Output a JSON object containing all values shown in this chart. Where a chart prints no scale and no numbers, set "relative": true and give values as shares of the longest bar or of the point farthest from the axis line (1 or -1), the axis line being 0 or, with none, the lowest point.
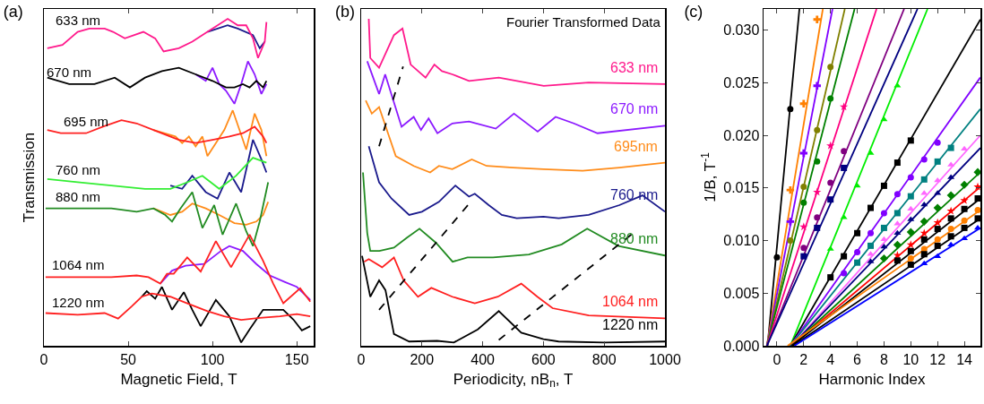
{
  "chart_data": [
    {
      "type": "line",
      "title": "(a)",
      "xlabel": "Magnetic Field, T",
      "ylabel": "Transmission",
      "relative": true,
      "tick_labels": "x",
      "xlim": [
        0,
        160
      ],
      "xticks": [
        0,
        50,
        100,
        150
      ],
      "annotations": [
        {
          "text": "633 nm",
          "x": 20,
          "y": 0.96
        },
        {
          "text": "670 nm",
          "x": 15,
          "y": 0.8
        },
        {
          "text": "695 nm",
          "x": 25,
          "y": 0.65
        },
        {
          "text": "760 nm",
          "x": 20,
          "y": 0.5
        },
        {
          "text": "880 nm",
          "x": 20,
          "y": 0.42
        },
        {
          "text": "1064 nm",
          "x": 20,
          "y": 0.21
        },
        {
          "text": "1220 nm",
          "x": 20,
          "y": 0.095
        }
      ],
      "series": [
        {
          "color": "#1a1a8c",
          "x": [
            97,
            109,
            115,
            124,
            128,
            131
          ],
          "values": [
            0.96,
            0.98,
            0.97,
            0.95,
            0.91,
            0.93
          ]
        },
        {
          "color": "#ff1a8c",
          "x": [
            2,
            11,
            20,
            27,
            36,
            41,
            48,
            59,
            66,
            71,
            80,
            88,
            97,
            109,
            115,
            120,
            124,
            127,
            131,
            132
          ],
          "values": [
            0.91,
            0.92,
            0.96,
            0.97,
            0.97,
            0.96,
            0.94,
            0.96,
            0.94,
            0.9,
            0.91,
            0.93,
            0.96,
            1.0,
            0.98,
            0.98,
            0.94,
            0.88,
            0.93,
            0.99
          ]
        },
        {
          "color": "#8c1aff",
          "x": [
            90,
            96,
            100,
            104,
            108,
            113,
            117,
            121,
            125,
            129,
            132
          ],
          "values": [
            0.83,
            0.81,
            0.85,
            0.8,
            0.78,
            0.74,
            0.8,
            0.87,
            0.83,
            0.77,
            0.8
          ]
        },
        {
          "color": "#000000",
          "x": [
            2,
            15,
            30,
            42,
            51,
            60,
            70,
            80,
            90,
            100,
            108,
            113,
            118,
            122,
            126,
            130,
            132
          ],
          "values": [
            0.82,
            0.8,
            0.8,
            0.82,
            0.79,
            0.82,
            0.84,
            0.85,
            0.83,
            0.81,
            0.79,
            0.79,
            0.8,
            0.79,
            0.81,
            0.79,
            0.81
          ]
        },
        {
          "color": "#ff8c1a",
          "x": [
            65,
            78,
            82,
            86,
            90,
            94,
            97,
            102,
            107,
            112,
            116,
            120,
            125,
            129,
            132
          ],
          "values": [
            0.66,
            0.64,
            0.62,
            0.64,
            0.61,
            0.64,
            0.58,
            0.62,
            0.66,
            0.72,
            0.66,
            0.6,
            0.71,
            0.66,
            0.58
          ]
        },
        {
          "color": "#ff2020",
          "x": [
            2,
            10,
            25,
            35,
            46,
            55,
            65,
            80,
            90,
            100,
            110,
            118,
            125,
            130,
            132
          ],
          "values": [
            0.66,
            0.65,
            0.65,
            0.67,
            0.69,
            0.68,
            0.66,
            0.63,
            0.62,
            0.63,
            0.64,
            0.65,
            0.67,
            0.64,
            0.62
          ]
        },
        {
          "color": "#1a1a8c",
          "x": [
            75,
            82,
            88,
            96,
            103,
            110,
            117,
            124,
            129,
            132
          ],
          "values": [
            0.49,
            0.48,
            0.52,
            0.47,
            0.45,
            0.53,
            0.47,
            0.63,
            0.57,
            0.53
          ]
        },
        {
          "color": "#33ee33",
          "x": [
            2,
            20,
            40,
            60,
            75,
            85,
            94,
            104,
            114,
            124,
            132
          ],
          "values": [
            0.51,
            0.5,
            0.49,
            0.48,
            0.48,
            0.5,
            0.52,
            0.48,
            0.52,
            0.575,
            0.56
          ]
        },
        {
          "color": "#ff8c1a",
          "x": [
            65,
            75,
            82,
            88,
            96,
            104,
            113,
            120,
            126,
            130,
            133
          ],
          "values": [
            0.42,
            0.4,
            0.41,
            0.435,
            0.42,
            0.4,
            0.375,
            0.37,
            0.38,
            0.4,
            0.44
          ]
        },
        {
          "color": "#228b22",
          "x": [
            1,
            20,
            40,
            55,
            65,
            72,
            76,
            81,
            88,
            94,
            101,
            106,
            114,
            120,
            124,
            128,
            133
          ],
          "values": [
            0.42,
            0.42,
            0.42,
            0.41,
            0.42,
            0.4,
            0.38,
            0.42,
            0.47,
            0.36,
            0.43,
            0.34,
            0.435,
            0.35,
            0.305,
            0.38,
            0.5
          ]
        },
        {
          "color": "#8c1aff",
          "x": [
            69,
            76,
            84,
            95,
            105,
            110,
            118,
            126,
            134,
            143,
            150,
            158
          ],
          "values": [
            0.19,
            0.23,
            0.245,
            0.25,
            0.29,
            0.305,
            0.29,
            0.25,
            0.215,
            0.195,
            0.18,
            0.14
          ]
        },
        {
          "color": "#ff2020",
          "x": [
            1,
            20,
            40,
            55,
            62,
            69,
            73,
            77,
            85,
            93,
            102,
            111,
            122,
            130,
            136,
            142,
            152,
            158
          ],
          "values": [
            0.21,
            0.21,
            0.21,
            0.215,
            0.21,
            0.19,
            0.22,
            0.22,
            0.27,
            0.227,
            0.32,
            0.24,
            0.34,
            0.26,
            0.19,
            0.13,
            0.176,
            0.135
          ]
        },
        {
          "color": "#000000",
          "x": [
            58,
            61,
            66,
            70,
            76,
            83,
            88,
            93,
            102,
            110,
            117,
            122,
            130,
            142,
            148,
            153,
            158
          ],
          "values": [
            0.15,
            0.167,
            0.144,
            0.18,
            0.11,
            0.164,
            0.11,
            0.06,
            0.14,
            0.09,
            0.01,
            0.05,
            0.11,
            0.11,
            0.08,
            0.047,
            0.06
          ]
        },
        {
          "color": "#ff2020",
          "x": [
            1,
            20,
            36,
            44,
            52,
            58,
            64,
            75,
            85,
            97,
            107,
            117,
            128,
            140,
            150,
            158
          ],
          "values": [
            0.1,
            0.095,
            0.1,
            0.083,
            0.12,
            0.15,
            0.16,
            0.15,
            0.13,
            0.106,
            0.09,
            0.079,
            0.085,
            0.09,
            0.097,
            0.09
          ]
        }
      ]
    },
    {
      "type": "line",
      "title": "(b)",
      "xlabel": "Periodicity, nB$_{n}$, T",
      "relative": true,
      "tick_labels": "x",
      "xlim": [
        0,
        1000
      ],
      "xticks": [
        0,
        200,
        400,
        600,
        800,
        1000
      ],
      "annotations": [
        "Fourier Transformed Data"
      ],
      "series": [
        {
          "name": "633 nm",
          "color": "#ff1a8c",
          "x": [
            25,
            30,
            59,
            108,
            136,
            163,
            212,
            241,
            266,
            300,
            355,
            453,
            601,
            749,
            1000
          ],
          "values": [
            1.0,
            0.88,
            0.85,
            0.95,
            0.97,
            0.86,
            0.82,
            0.86,
            0.84,
            0.83,
            0.81,
            0.82,
            0.795,
            0.805,
            0.8
          ]
        },
        {
          "name": "670 nm",
          "color": "#8c1aff",
          "x": [
            20,
            59,
            79,
            133,
            173,
            197,
            222,
            251,
            300,
            355,
            443,
            503,
            581,
            640,
            700,
            778,
            1000
          ],
          "values": [
            0.87,
            0.77,
            0.83,
            0.67,
            0.7,
            0.66,
            0.695,
            0.65,
            0.68,
            0.686,
            0.664,
            0.71,
            0.655,
            0.7,
            0.68,
            0.65,
            0.673
          ]
        },
        {
          "name": "695nm",
          "color": "#ff8c1a",
          "x": [
            15,
            35,
            59,
            114,
            173,
            227,
            256,
            300,
            364,
            413,
            500,
            600,
            729,
            850,
            1000
          ],
          "values": [
            0.75,
            0.71,
            0.73,
            0.58,
            0.55,
            0.53,
            0.55,
            0.54,
            0.57,
            0.55,
            0.545,
            0.54,
            0.535,
            0.545,
            0.56
          ]
        },
        {
          "name": "760 nm",
          "color": "#1a1a8c",
          "x": [
            25,
            59,
            100,
            158,
            200,
            256,
            310,
            355,
            374,
            420,
            463,
            512,
            600,
            650,
            749,
            850,
            926,
            1000
          ],
          "values": [
            0.61,
            0.5,
            0.45,
            0.4,
            0.41,
            0.44,
            0.49,
            0.456,
            0.465,
            0.43,
            0.4,
            0.39,
            0.395,
            0.39,
            0.4,
            0.43,
            0.46,
            0.41
          ]
        },
        {
          "name": "880 nm",
          "color": "#228b22",
          "x": [
            6,
            20,
            30,
            60,
            108,
            150,
            192,
            246,
            301,
            350,
            434,
            552,
            660,
            744,
            847,
            1000
          ],
          "values": [
            0.53,
            0.345,
            0.29,
            0.29,
            0.3,
            0.33,
            0.358,
            0.315,
            0.257,
            0.27,
            0.27,
            0.279,
            0.31,
            0.358,
            0.305,
            0.276
          ]
        },
        {
          "name": "1064 nm",
          "color": "#ff2020",
          "x": [
            10,
            25,
            69,
            108,
            140,
            187,
            231,
            300,
            374,
            450,
            527,
            580,
            630,
            749,
            1000
          ],
          "values": [
            0.257,
            0.265,
            0.24,
            0.27,
            0.2,
            0.15,
            0.177,
            0.15,
            0.13,
            0.15,
            0.19,
            0.15,
            0.115,
            0.093,
            0.084
          ]
        },
        {
          "name": "1220 nm",
          "color": "#000000",
          "x": [
            3,
            30,
            59,
            80,
            108,
            158,
            250,
            305,
            384,
            453,
            527,
            600,
            650,
            800,
            1000
          ],
          "values": [
            0.275,
            0.15,
            0.2,
            0.17,
            0.036,
            0.013,
            0.015,
            0.01,
            0.05,
            0.106,
            0.04,
            0.02,
            0.013,
            0.01,
            0.013
          ]
        },
        {
          "color": "#000000",
          "line_style": "dashed",
          "x": [
            59,
            138
          ],
          "values": [
            0.61,
            0.854
          ]
        },
        {
          "color": "#000000",
          "line_style": "dashed",
          "x": [
            59,
            355
          ],
          "values": [
            0.11,
            0.434
          ]
        },
        {
          "color": "#000000",
          "line_style": "dashed",
          "x": [
            453,
            896
          ],
          "values": [
            0.018,
            0.345
          ]
        }
      ]
    },
    {
      "type": "scatter",
      "title": "(c)",
      "xlabel": "Harmonic Index",
      "ylabel": "1/B, T$^{-1}$",
      "xlim": [
        -1,
        15.2
      ],
      "xticks": [
        0,
        2,
        4,
        6,
        8,
        10,
        12,
        14
      ],
      "ylim": [
        0,
        0.032
      ],
      "yticks": [
        {
          "value": 0,
          "label": "0.000"
        },
        {
          "value": 0.005,
          "label": "0.005"
        },
        {
          "value": 0.01,
          "label": "0.010"
        },
        {
          "value": 0.015,
          "label": "0.015"
        },
        {
          "value": 0.02,
          "label": "0.020"
        },
        {
          "value": 0.025,
          "label": "0.025"
        },
        {
          "value": 0.03,
          "label": "0.030"
        }
      ],
      "series": [
        {
          "type": "line",
          "marker": "none",
          "color": "#000000",
          "x": [
            -0.7,
            1.68
          ],
          "values": [
            0,
            0.032
          ]
        },
        {
          "type": "line",
          "marker": "none",
          "color": "#ff8000",
          "x": [
            -0.75,
            3.43
          ],
          "values": [
            0,
            0.032
          ]
        },
        {
          "type": "line",
          "marker": "none",
          "color": "#8000ff",
          "x": [
            -0.75,
            4.15
          ],
          "values": [
            0,
            0.032
          ]
        },
        {
          "type": "line",
          "marker": "none",
          "color": "#808000",
          "x": [
            -0.75,
            5.07
          ],
          "values": [
            0,
            0.032
          ]
        },
        {
          "type": "line",
          "marker": "none",
          "color": "#008000",
          "x": [
            -0.75,
            5.8
          ],
          "values": [
            0,
            0.032
          ]
        },
        {
          "type": "line",
          "marker": "none",
          "color": "#ff0080",
          "x": [
            -0.75,
            7.44
          ],
          "values": [
            0,
            0.032
          ]
        },
        {
          "type": "line",
          "marker": "none",
          "color": "#800080",
          "x": [
            -0.75,
            9.5
          ],
          "values": [
            0,
            0.032
          ]
        },
        {
          "type": "line",
          "marker": "none",
          "color": "#000080",
          "x": [
            -0.75,
            10.5
          ],
          "values": [
            0,
            0.032
          ]
        },
        {
          "type": "line",
          "marker": "none",
          "color": "#00ee00",
          "x": [
            1,
            11.25
          ],
          "values": [
            0,
            0.032
          ]
        },
        {
          "type": "line",
          "marker": "none",
          "color": "#000000",
          "x": [
            1,
            15.2
          ],
          "values": [
            0,
            0.031
          ]
        },
        {
          "type": "line",
          "marker": "none",
          "color": "#8000ff",
          "x": [
            1,
            15.2
          ],
          "values": [
            0,
            0.0255
          ]
        },
        {
          "type": "line",
          "marker": "none",
          "color": "#008080",
          "x": [
            1,
            15.2
          ],
          "values": [
            0,
            0.0225
          ]
        },
        {
          "type": "line",
          "marker": "none",
          "color": "#ff66ff",
          "x": [
            1.1,
            15.2
          ],
          "values": [
            0,
            0.02
          ]
        },
        {
          "type": "line",
          "marker": "none",
          "color": "#000080",
          "x": [
            1.1,
            15.2
          ],
          "values": [
            0,
            0.0188
          ]
        },
        {
          "type": "line",
          "marker": "none",
          "color": "#008000",
          "x": [
            1.1,
            15.2
          ],
          "values": [
            0,
            0.0165
          ]
        },
        {
          "type": "line",
          "marker": "none",
          "color": "#ff0000",
          "x": [
            1.1,
            15.2
          ],
          "values": [
            0,
            0.0151
          ]
        },
        {
          "type": "line",
          "marker": "none",
          "color": "#000000",
          "x": [
            1.1,
            15.2
          ],
          "values": [
            0,
            0.014
          ]
        },
        {
          "type": "line",
          "marker": "none",
          "color": "#ff8000",
          "x": [
            0.8,
            15.2
          ],
          "values": [
            0,
            0.0129
          ]
        },
        {
          "type": "line",
          "marker": "none",
          "color": "#000000",
          "x": [
            1.2,
            15.2
          ],
          "values": [
            0,
            0.0121
          ]
        },
        {
          "type": "line",
          "marker": "none",
          "color": "#0000ff",
          "x": [
            1.3,
            15.2
          ],
          "values": [
            0,
            0.0112
          ]
        },
        {
          "marker": "circle",
          "color": "#000000",
          "x": [
            0,
            1
          ],
          "values": [
            0.0084,
            0.0225
          ]
        },
        {
          "marker": "cross",
          "color": "#ff8000",
          "x": [
            1,
            2,
            3
          ],
          "values": [
            0.0148,
            0.023,
            0.031
          ]
        },
        {
          "marker": "cross",
          "color": "#8000ff",
          "x": [
            1,
            2,
            3
          ],
          "values": [
            0.0118,
            0.0183,
            0.0247
          ]
        },
        {
          "marker": "circle",
          "color": "#808000",
          "x": [
            1,
            2,
            3,
            4
          ],
          "values": [
            0.01,
            0.0151,
            0.0205,
            0.0265
          ]
        },
        {
          "marker": "circle",
          "color": "#008000",
          "x": [
            2,
            3,
            4
          ],
          "values": [
            0.0136,
            0.0175,
            0.0235
          ]
        },
        {
          "marker": "star",
          "color": "#ff0080",
          "x": [
            2,
            3,
            4,
            5
          ],
          "values": [
            0.0113,
            0.0146,
            0.019,
            0.0227
          ]
        },
        {
          "marker": "circle",
          "color": "#800080",
          "x": [
            2,
            3,
            4,
            5
          ],
          "values": [
            0.0093,
            0.0122,
            0.0155,
            0.0185
          ]
        },
        {
          "marker": "square",
          "color": "#000080",
          "x": [
            2,
            3,
            4,
            5
          ],
          "values": [
            0.0085,
            0.0112,
            0.0139,
            0.0169
          ]
        },
        {
          "marker": "triangle",
          "color": "#00ee00",
          "x": [
            4,
            5,
            6,
            7,
            8,
            9
          ],
          "values": [
            0.0092,
            0.0122,
            0.0152,
            0.0183,
            0.0215,
            0.0247
          ]
        },
        {
          "marker": "square",
          "color": "#000000",
          "x": [
            4,
            5,
            6,
            7,
            8,
            9,
            10
          ],
          "values": [
            0.0065,
            0.0085,
            0.0107,
            0.0131,
            0.0152,
            0.0174,
            0.0195
          ]
        },
        {
          "marker": "circle",
          "color": "#8000ff",
          "x": [
            5,
            6,
            7,
            8,
            9,
            10,
            11,
            12
          ],
          "values": [
            0.0069,
            0.0089,
            0.0107,
            0.0126,
            0.0144,
            0.016,
            0.0177,
            0.0193
          ]
        },
        {
          "marker": "square",
          "color": "#008080",
          "x": [
            6,
            7,
            8,
            9,
            10,
            11,
            12,
            13
          ],
          "values": [
            0.0079,
            0.0095,
            0.0112,
            0.0126,
            0.0142,
            0.0158,
            0.0175,
            0.0188
          ]
        },
        {
          "marker": "triangle",
          "color": "#ff66ff",
          "x": [
            7,
            8,
            9,
            10,
            11,
            12,
            13,
            14
          ],
          "values": [
            0.0087,
            0.0101,
            0.0116,
            0.013,
            0.0145,
            0.0157,
            0.0172,
            0.0187
          ]
        },
        {
          "marker": "triangle",
          "color": "#000080",
          "x": [
            7,
            8,
            9,
            10,
            11,
            12,
            13
          ],
          "values": [
            0.008,
            0.0094,
            0.0107,
            0.012,
            0.0134,
            0.0145,
            0.016
          ]
        },
        {
          "marker": "diamond",
          "color": "#008000",
          "x": [
            8,
            9,
            10,
            11,
            12,
            13,
            14,
            15
          ],
          "values": [
            0.0083,
            0.0096,
            0.0108,
            0.0118,
            0.0131,
            0.0143,
            0.0153,
            0.0165
          ]
        },
        {
          "marker": "star",
          "color": "#ff0000",
          "x": [
            9,
            10,
            11,
            12,
            13,
            14,
            15
          ],
          "values": [
            0.0086,
            0.0096,
            0.0107,
            0.0117,
            0.0128,
            0.0138,
            0.0151
          ]
        },
        {
          "marker": "square",
          "color": "#000000",
          "x": [
            9,
            10,
            11,
            12,
            13,
            14,
            15
          ],
          "values": [
            0.0081,
            0.009,
            0.0101,
            0.0111,
            0.0121,
            0.013,
            0.014
          ]
        },
        {
          "marker": "circle",
          "color": "#ff8000",
          "x": [
            10,
            11,
            12,
            13,
            14,
            15
          ],
          "values": [
            0.0083,
            0.0092,
            0.0101,
            0.0111,
            0.0119,
            0.0129
          ]
        },
        {
          "marker": "square",
          "color": "#000000",
          "x": [
            10,
            11,
            12,
            13,
            14,
            15
          ],
          "values": [
            0.0077,
            0.0087,
            0.0095,
            0.0104,
            0.0112,
            0.0121
          ]
        },
        {
          "marker": "triangle",
          "color": "#0000ff",
          "x": [
            11,
            12,
            13,
            14,
            15
          ],
          "values": [
            0.0078,
            0.0085,
            0.0096,
            0.0102,
            0.0112
          ]
        }
      ]
    }
  ]
}
